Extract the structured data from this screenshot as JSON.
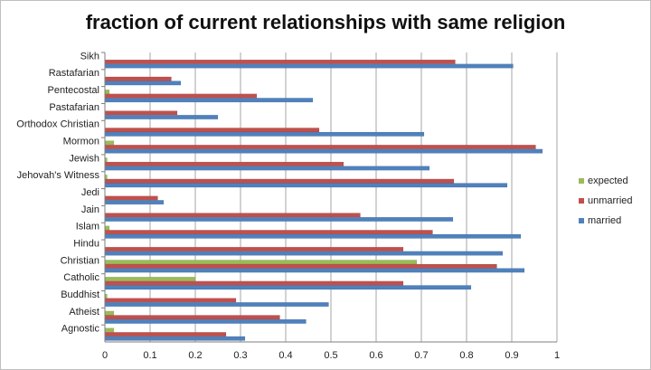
{
  "chart_data": {
    "type": "bar",
    "orientation": "horizontal",
    "title": "fraction of current relationships with same religion",
    "xlabel": "",
    "ylabel": "",
    "xlim": [
      0,
      1
    ],
    "x_ticks": [
      "0",
      "0.1",
      "0.2",
      "0.3",
      "0.4",
      "0.5",
      "0.6",
      "0.7",
      "0.8",
      "0.9",
      "1"
    ],
    "grid": true,
    "legend_position": "right",
    "categories": [
      "Sikh",
      "Rastafarian",
      "Pentecostal",
      "Pastafarian",
      "Orthodox Christian",
      "Mormon",
      "Jewish",
      "Jehovah's Witness",
      "Jedi",
      "Jain",
      "Islam",
      "Hindu",
      "Christian",
      "Catholic",
      "Buddhist",
      "Atheist",
      "Agnostic"
    ],
    "series": [
      {
        "name": "expected",
        "color": "#9bbb59",
        "values": [
          0.0,
          0.0,
          0.01,
          0.0,
          0.0,
          0.02,
          0.005,
          0.005,
          0.0,
          0.0,
          0.01,
          0.0,
          0.69,
          0.2,
          0.005,
          0.02,
          0.02
        ]
      },
      {
        "name": "unmarried",
        "color": "#c0504d",
        "values": [
          0.775,
          0.147,
          0.336,
          0.16,
          0.474,
          0.953,
          0.528,
          0.772,
          0.117,
          0.565,
          0.725,
          0.66,
          0.867,
          0.66,
          0.29,
          0.387,
          0.268
        ]
      },
      {
        "name": "married",
        "color": "#4f81bd",
        "values": [
          0.903,
          0.168,
          0.46,
          0.25,
          0.706,
          0.968,
          0.718,
          0.89,
          0.13,
          0.77,
          0.92,
          0.88,
          0.928,
          0.81,
          0.495,
          0.445,
          0.31
        ]
      }
    ]
  }
}
